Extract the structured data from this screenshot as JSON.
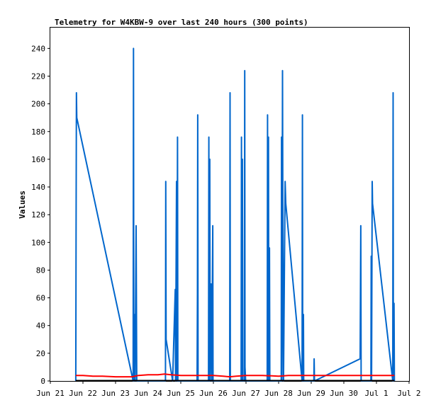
{
  "chart_data": {
    "type": "line",
    "title": "Telemetry for W4KBW-9 over last 240 hours (300 points)",
    "xlabel": "",
    "ylabel": "Values",
    "x_ticks": [
      "Jun 21",
      "Jun 22",
      "Jun 23",
      "Jun 24",
      "Jun 25",
      "Jun 26",
      "Jun 27",
      "Jun 28",
      "Jun 29",
      "Jun 30",
      "Jul 1",
      "Jul 2"
    ],
    "y_ticks": [
      0,
      20,
      40,
      60,
      80,
      100,
      120,
      140,
      160,
      180,
      200,
      220,
      240
    ],
    "xlim": [
      0,
      11
    ],
    "ylim": [
      0,
      255
    ],
    "grid": false,
    "series": [
      {
        "color": "#0066cc",
        "points": [
          [
            0.78,
            0
          ],
          [
            0.79,
            104
          ],
          [
            0.8,
            208
          ],
          [
            0.81,
            190
          ],
          [
            2.54,
            0
          ],
          [
            2.55,
            240
          ],
          [
            2.56,
            0
          ],
          [
            2.58,
            48
          ],
          [
            2.6,
            0
          ],
          [
            2.63,
            112
          ],
          [
            2.65,
            0
          ],
          [
            3.53,
            0
          ],
          [
            3.54,
            144
          ],
          [
            3.55,
            30
          ],
          [
            3.75,
            0
          ],
          [
            3.83,
            66
          ],
          [
            3.84,
            0
          ],
          [
            3.87,
            144
          ],
          [
            3.88,
            0
          ],
          [
            3.9,
            176
          ],
          [
            3.91,
            0
          ],
          [
            4.5,
            0
          ],
          [
            4.51,
            64
          ],
          [
            4.52,
            192
          ],
          [
            4.53,
            0
          ],
          [
            4.85,
            0
          ],
          [
            4.86,
            176
          ],
          [
            4.87,
            0
          ],
          [
            4.89,
            160
          ],
          [
            4.9,
            0
          ],
          [
            4.93,
            70
          ],
          [
            4.95,
            0
          ],
          [
            4.98,
            112
          ],
          [
            4.99,
            0
          ],
          [
            5.5,
            0
          ],
          [
            5.51,
            208
          ],
          [
            5.52,
            0
          ],
          [
            5.85,
            0
          ],
          [
            5.86,
            176
          ],
          [
            5.87,
            0
          ],
          [
            5.89,
            160
          ],
          [
            5.9,
            0
          ],
          [
            5.95,
            0
          ],
          [
            5.96,
            224
          ],
          [
            5.97,
            10
          ],
          [
            5.99,
            0
          ],
          [
            6.65,
            0
          ],
          [
            6.66,
            192
          ],
          [
            6.67,
            0
          ],
          [
            6.69,
            176
          ],
          [
            6.7,
            0
          ],
          [
            6.72,
            96
          ],
          [
            6.73,
            0
          ],
          [
            7.08,
            0
          ],
          [
            7.09,
            176
          ],
          [
            7.1,
            0
          ],
          [
            7.12,
            224
          ],
          [
            7.13,
            112
          ],
          [
            7.15,
            0
          ],
          [
            7.2,
            144
          ],
          [
            7.22,
            128
          ],
          [
            7.72,
            0
          ],
          [
            7.73,
            192
          ],
          [
            7.74,
            0
          ],
          [
            7.76,
            48
          ],
          [
            7.77,
            0
          ],
          [
            8.08,
            0
          ],
          [
            8.09,
            16
          ],
          [
            8.1,
            0
          ],
          [
            9.5,
            16
          ],
          [
            9.52,
            112
          ],
          [
            9.53,
            0
          ],
          [
            9.83,
            0
          ],
          [
            9.84,
            90
          ],
          [
            9.85,
            0
          ],
          [
            9.87,
            144
          ],
          [
            9.88,
            128
          ],
          [
            10.5,
            0
          ],
          [
            10.51,
            208
          ],
          [
            10.52,
            0
          ],
          [
            10.54,
            56
          ],
          [
            10.55,
            0
          ]
        ]
      },
      {
        "color": "#ff0000",
        "points": [
          [
            0.78,
            4
          ],
          [
            1.0,
            4
          ],
          [
            1.3,
            3.5
          ],
          [
            1.6,
            3.5
          ],
          [
            2.0,
            3
          ],
          [
            2.3,
            3
          ],
          [
            2.5,
            3
          ],
          [
            2.7,
            4
          ],
          [
            3.0,
            4.5
          ],
          [
            3.3,
            4.5
          ],
          [
            3.5,
            5
          ],
          [
            3.7,
            4.5
          ],
          [
            4.0,
            4
          ],
          [
            4.5,
            4
          ],
          [
            5.0,
            4
          ],
          [
            5.3,
            3.5
          ],
          [
            5.5,
            3
          ],
          [
            5.7,
            3.5
          ],
          [
            6.0,
            4
          ],
          [
            6.5,
            4
          ],
          [
            7.0,
            3.5
          ],
          [
            7.3,
            4
          ],
          [
            7.6,
            4
          ],
          [
            8.0,
            4
          ],
          [
            8.3,
            4
          ],
          [
            8.7,
            4
          ],
          [
            9.0,
            4
          ],
          [
            9.5,
            4
          ],
          [
            9.8,
            4
          ],
          [
            10.2,
            4
          ],
          [
            10.55,
            4
          ]
        ]
      }
    ]
  }
}
